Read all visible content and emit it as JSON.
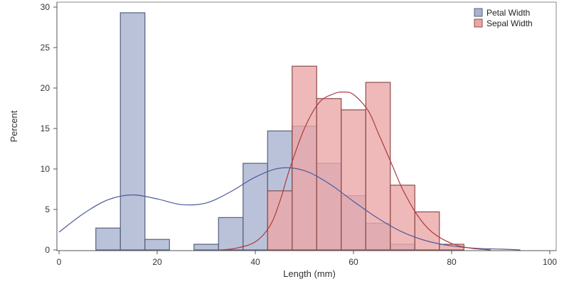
{
  "chart_data": {
    "type": "bar",
    "title": "",
    "xlabel": "Length (mm)",
    "ylabel": "Percent",
    "xlim": [
      0,
      100
    ],
    "ylim": [
      0,
      30
    ],
    "xticks": [
      0,
      20,
      40,
      60,
      80,
      100
    ],
    "yticks": [
      0,
      5,
      10,
      15,
      20,
      25,
      30
    ],
    "bin_width": 5,
    "legend_position": "top-right",
    "grid": false,
    "series": [
      {
        "name": "Petal Width",
        "fill": "#a9b3d1",
        "stroke": "#55607f",
        "curve": "#4c5b9e",
        "bins": [
          {
            "start": 7.5,
            "value": 2.7
          },
          {
            "start": 12.5,
            "value": 29.3
          },
          {
            "start": 17.5,
            "value": 1.3
          },
          {
            "start": 27.5,
            "value": 0.7
          },
          {
            "start": 32.5,
            "value": 4.0
          },
          {
            "start": 37.5,
            "value": 10.7
          },
          {
            "start": 42.5,
            "value": 14.7
          },
          {
            "start": 47.5,
            "value": 15.3
          },
          {
            "start": 52.5,
            "value": 10.7
          },
          {
            "start": 57.5,
            "value": 6.7
          },
          {
            "start": 62.5,
            "value": 3.3
          },
          {
            "start": 67.5,
            "value": 0.7
          }
        ],
        "density_curve": {
          "x": [
            0,
            5,
            10,
            15,
            20,
            25,
            30,
            35,
            40,
            45,
            50,
            55,
            60,
            65,
            70,
            75,
            80,
            85,
            90,
            94
          ],
          "y": [
            2.2,
            4.5,
            6.2,
            6.8,
            6.3,
            5.6,
            5.8,
            7.2,
            9.0,
            10.1,
            9.8,
            8.2,
            6.0,
            3.9,
            2.2,
            1.1,
            0.5,
            0.2,
            0.1,
            0.0
          ]
        }
      },
      {
        "name": "Sepal Width",
        "fill": "#eba7a7",
        "stroke": "#8f4a4a",
        "curve": "#b03a3a",
        "bins": [
          {
            "start": 42.5,
            "value": 7.3
          },
          {
            "start": 47.5,
            "value": 22.7
          },
          {
            "start": 52.5,
            "value": 18.7
          },
          {
            "start": 57.5,
            "value": 17.3
          },
          {
            "start": 62.5,
            "value": 20.7
          },
          {
            "start": 67.5,
            "value": 8.0
          },
          {
            "start": 72.5,
            "value": 4.7
          },
          {
            "start": 77.5,
            "value": 0.7
          }
        ],
        "density_curve": {
          "x": [
            33,
            36,
            40,
            43,
            45,
            47,
            50,
            53,
            56,
            58,
            60,
            63,
            65,
            68,
            70,
            73,
            76,
            80,
            84,
            88
          ],
          "y": [
            0.0,
            0.2,
            1.0,
            3.0,
            6.0,
            10.0,
            15.0,
            18.2,
            19.3,
            19.5,
            19.2,
            17.2,
            14.5,
            10.3,
            7.5,
            4.3,
            2.2,
            0.8,
            0.2,
            0.0
          ]
        }
      }
    ]
  }
}
